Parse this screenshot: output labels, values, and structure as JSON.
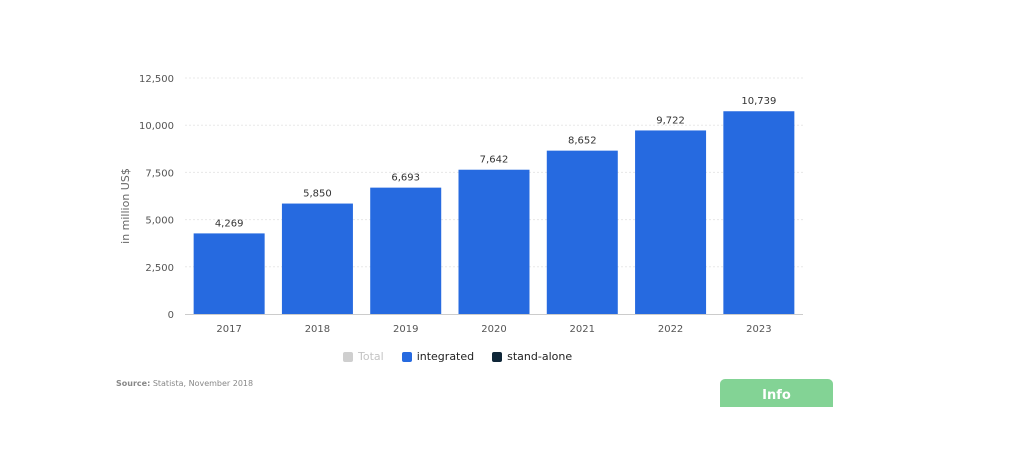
{
  "chart_data": {
    "type": "bar",
    "categories": [
      "2017",
      "2018",
      "2019",
      "2020",
      "2021",
      "2022",
      "2023"
    ],
    "series": [
      {
        "name": "integrated",
        "values": [
          4269,
          5850,
          6693,
          7642,
          8652,
          9722,
          10739
        ]
      }
    ],
    "value_labels": [
      "4,269",
      "5,850",
      "6,693",
      "7,642",
      "8,652",
      "9,722",
      "10,739"
    ],
    "ylabel": "in million US$",
    "ylim": [
      0,
      12500
    ],
    "yticks": [
      0,
      2500,
      5000,
      7500,
      10000,
      12500
    ],
    "ytick_labels": [
      "0",
      "2,500",
      "5,000",
      "7,500",
      "10,000",
      "12,500"
    ],
    "grid": true,
    "legend_position": "bottom"
  },
  "colors": {
    "bar": "#266ae0",
    "grid": "#e8e8e8",
    "legend_total": "#cfcfcf",
    "legend_integrated": "#266ae0",
    "legend_standalone": "#0f2638",
    "info_button": "#83d395"
  },
  "legend": {
    "items": [
      {
        "label": "Total",
        "active": false
      },
      {
        "label": "integrated",
        "active": true
      },
      {
        "label": "stand-alone",
        "active": true
      }
    ]
  },
  "source": {
    "prefix": "Source:",
    "text": "Statista, November 2018"
  },
  "info_button": {
    "label": "Info"
  }
}
